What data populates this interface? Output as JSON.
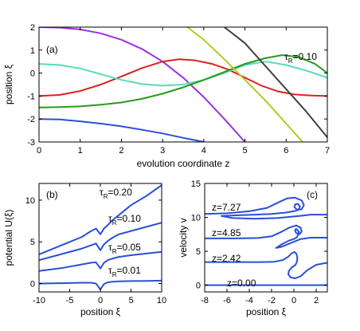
{
  "chart_data": [
    {
      "type": "line",
      "panel_label": "(a)",
      "xlabel": "evolution coordinate z",
      "ylabel": "position ξ",
      "xlim": [
        0,
        7
      ],
      "ylim": [
        -3,
        2
      ],
      "xticks": [
        "0",
        "1",
        "2",
        "3",
        "4",
        "5",
        "6",
        "7"
      ],
      "yticks": [
        "-3",
        "-2",
        "-1",
        "0",
        "1",
        "2"
      ],
      "annotations": [
        {
          "text": "τ",
          "sub": "R",
          "rest": "=0.10"
        }
      ],
      "series": [
        {
          "color": "#9933dd",
          "x": [
            0,
            0.5,
            1,
            1.5,
            2,
            2.5,
            3,
            3.5,
            4,
            4.5,
            5
          ],
          "y": [
            2.0,
            1.98,
            1.9,
            1.73,
            1.45,
            1.05,
            0.5,
            -0.2,
            -1.05,
            -2.0,
            -3.0
          ]
        },
        {
          "color": "#2a4fd8",
          "x": [
            0,
            0.5,
            1,
            1.5,
            2,
            2.5,
            3,
            3.5,
            4
          ],
          "y": [
            -2.0,
            -2.02,
            -2.1,
            -2.2,
            -2.32,
            -2.47,
            -2.63,
            -2.82,
            -3.0
          ]
        },
        {
          "color": "#e02020",
          "x": [
            0,
            0.5,
            1,
            1.5,
            2,
            2.5,
            3,
            3.4,
            3.8,
            4.2,
            4.6,
            5,
            5.4,
            5.8,
            6.2,
            6.6,
            7
          ],
          "y": [
            -1.0,
            -0.95,
            -0.78,
            -0.5,
            -0.15,
            0.22,
            0.5,
            0.6,
            0.55,
            0.4,
            0.15,
            -0.2,
            -0.55,
            -0.8,
            -0.93,
            -0.98,
            -1.0
          ]
        },
        {
          "color": "#55ddbb",
          "x": [
            0,
            0.5,
            1,
            1.5,
            2,
            2.5,
            3,
            3.5,
            4,
            4.5,
            5,
            5.5,
            6,
            6.5,
            7
          ],
          "y": [
            0.4,
            0.35,
            0.2,
            -0.05,
            -0.3,
            -0.48,
            -0.55,
            -0.5,
            -0.3,
            0.0,
            0.35,
            0.5,
            0.35,
            0.1,
            -0.2
          ]
        },
        {
          "color": "#2a9a1a",
          "x": [
            0,
            0.5,
            1,
            1.5,
            2,
            2.5,
            3,
            3.5,
            4,
            4.5,
            5,
            5.5,
            5.9,
            6.3,
            6.7,
            7
          ],
          "y": [
            -1.5,
            -1.48,
            -1.45,
            -1.38,
            -1.28,
            -1.12,
            -0.9,
            -0.62,
            -0.3,
            0.05,
            0.4,
            0.65,
            0.78,
            0.7,
            0.4,
            0.0
          ]
        },
        {
          "color": "#b8c820",
          "x": [
            3.6,
            4,
            4.5,
            5,
            5.5,
            6,
            6.4
          ],
          "y": [
            2.0,
            1.45,
            0.6,
            -0.3,
            -1.2,
            -2.2,
            -3.0
          ]
        },
        {
          "color": "#404040",
          "x": [
            4.5,
            5,
            5.5,
            6,
            6.5,
            7
          ],
          "y": [
            2.0,
            1.3,
            0.3,
            -0.7,
            -1.7,
            -2.8
          ]
        }
      ]
    },
    {
      "type": "line",
      "panel_label": "(b)",
      "xlabel": "position ξ",
      "ylabel": "potential U(ξ)",
      "xlim": [
        -10,
        10
      ],
      "ylim": [
        -1,
        12
      ],
      "xticks": [
        "-10",
        "-5",
        "0",
        "5",
        "10"
      ],
      "yticks": [
        "0",
        "5",
        "10"
      ],
      "annotations": [
        {
          "text": "τ",
          "sub": "R",
          "rest": "=0.20"
        },
        {
          "text": "τ",
          "sub": "R",
          "rest": "=0.10"
        },
        {
          "text": "τ",
          "sub": "R",
          "rest": "=0.05"
        },
        {
          "text": "τ",
          "sub": "R",
          "rest": "=0.01"
        }
      ],
      "series": [
        {
          "color": "#2a4fd8",
          "x": [
            -10,
            -6,
            -3,
            -1.5,
            -0.7,
            0,
            0.6,
            1.2,
            2,
            3,
            5,
            7.5,
            10
          ],
          "y": [
            3.5,
            4.7,
            5.6,
            6.3,
            6.6,
            5.9,
            6.6,
            7.0,
            7.6,
            8.2,
            9.4,
            10.5,
            11.8
          ]
        },
        {
          "color": "#2a4fd8",
          "x": [
            -10,
            -6,
            -3,
            -1.5,
            -0.7,
            0,
            0.6,
            1.2,
            2,
            3,
            5,
            7.5,
            10
          ],
          "y": [
            2.8,
            3.6,
            4.2,
            4.6,
            4.8,
            4.0,
            4.7,
            5.1,
            5.5,
            5.9,
            6.3,
            6.8,
            7.3
          ]
        },
        {
          "color": "#2a4fd8",
          "x": [
            -10,
            -6,
            -3,
            -1.5,
            -0.7,
            0,
            0.6,
            1.2,
            2,
            3,
            5,
            7.5,
            10
          ],
          "y": [
            1.5,
            1.9,
            2.3,
            2.5,
            2.55,
            1.8,
            2.5,
            2.8,
            3.0,
            3.2,
            3.4,
            3.6,
            3.8
          ]
        },
        {
          "color": "#2a4fd8",
          "x": [
            -10,
            -6,
            -3,
            -1.5,
            -0.7,
            0,
            0.6,
            1.2,
            2,
            3,
            5,
            7.5,
            10
          ],
          "y": [
            0.0,
            0.05,
            0.1,
            0.1,
            0.0,
            -0.7,
            -0.05,
            0.15,
            0.22,
            0.26,
            0.3,
            0.32,
            0.35
          ]
        }
      ]
    },
    {
      "type": "line",
      "panel_label": "(c)",
      "xlabel": "position ξ",
      "ylabel": "velocity v",
      "xlim": [
        -8,
        3
      ],
      "ylim": [
        -1,
        15
      ],
      "xticks": [
        "-8",
        "-6",
        "-4",
        "-2",
        "0",
        "2"
      ],
      "yticks": [
        "0",
        "5",
        "10",
        "15"
      ],
      "annotations": [
        "z=7.27",
        "z=4.85",
        "z=2.42",
        "z=0.00"
      ],
      "series": [
        {
          "color": "#2a4fd8",
          "x": [
            -8,
            -6,
            -4,
            -2,
            0,
            2,
            3
          ],
          "y": [
            0.0,
            0.0,
            0.0,
            0.0,
            0.0,
            0.0,
            0.0
          ]
        },
        {
          "color": "#2a4fd8",
          "x": [
            -8,
            -5,
            -3,
            -1.8,
            -1.0,
            -0.5,
            -0.2,
            0.05,
            0.2,
            0.3,
            0.3,
            0.15,
            -0.2,
            -0.45,
            -0.5,
            -0.3,
            0.1,
            0.6,
            1.2,
            2.0,
            3.0
          ],
          "y": [
            3.4,
            3.4,
            3.4,
            3.45,
            3.7,
            4.2,
            4.7,
            4.9,
            4.7,
            4.2,
            3.6,
            3.0,
            2.6,
            2.1,
            1.6,
            1.15,
            1.0,
            1.3,
            2.2,
            3.0,
            3.3
          ]
        },
        {
          "color": "#2a4fd8",
          "x": [
            -8,
            -5,
            -3.2,
            -2.0,
            -1.2,
            -0.4,
            0.2,
            0.6,
            0.7,
            0.5,
            0.2,
            0.1,
            0.2,
            0.45,
            0.3,
            0.0,
            -0.4,
            -1.0,
            -1.6,
            -1.2,
            -0.3,
            0.6,
            1.5,
            3.0
          ],
          "y": [
            6.9,
            6.9,
            6.95,
            7.2,
            7.8,
            8.5,
            8.8,
            8.5,
            7.9,
            7.5,
            7.7,
            8.1,
            8.3,
            7.9,
            7.1,
            6.8,
            6.6,
            6.1,
            5.5,
            5.6,
            6.2,
            6.8,
            7.0,
            7.0
          ]
        },
        {
          "color": "#2a4fd8",
          "x": [
            -8,
            -6,
            -4,
            -2.4,
            -1.4,
            -0.6,
            0.1,
            0.7,
            0.9,
            0.7,
            0.3,
            0.05,
            0.1,
            0.35,
            0.55,
            0.4,
            0.0,
            -0.8,
            -2.0,
            -3.5,
            -5.0,
            -6.5,
            -5.5,
            -3.5,
            -1.5,
            0.5,
            1.5,
            3.0
          ],
          "y": [
            10.5,
            10.6,
            10.9,
            11.4,
            12.2,
            12.8,
            12.9,
            12.5,
            11.8,
            11.2,
            11.1,
            11.5,
            11.9,
            12.0,
            11.6,
            11.1,
            10.9,
            10.7,
            10.5,
            10.4,
            10.3,
            10.2,
            9.9,
            9.8,
            9.9,
            10.2,
            10.4,
            10.4
          ]
        }
      ]
    }
  ]
}
